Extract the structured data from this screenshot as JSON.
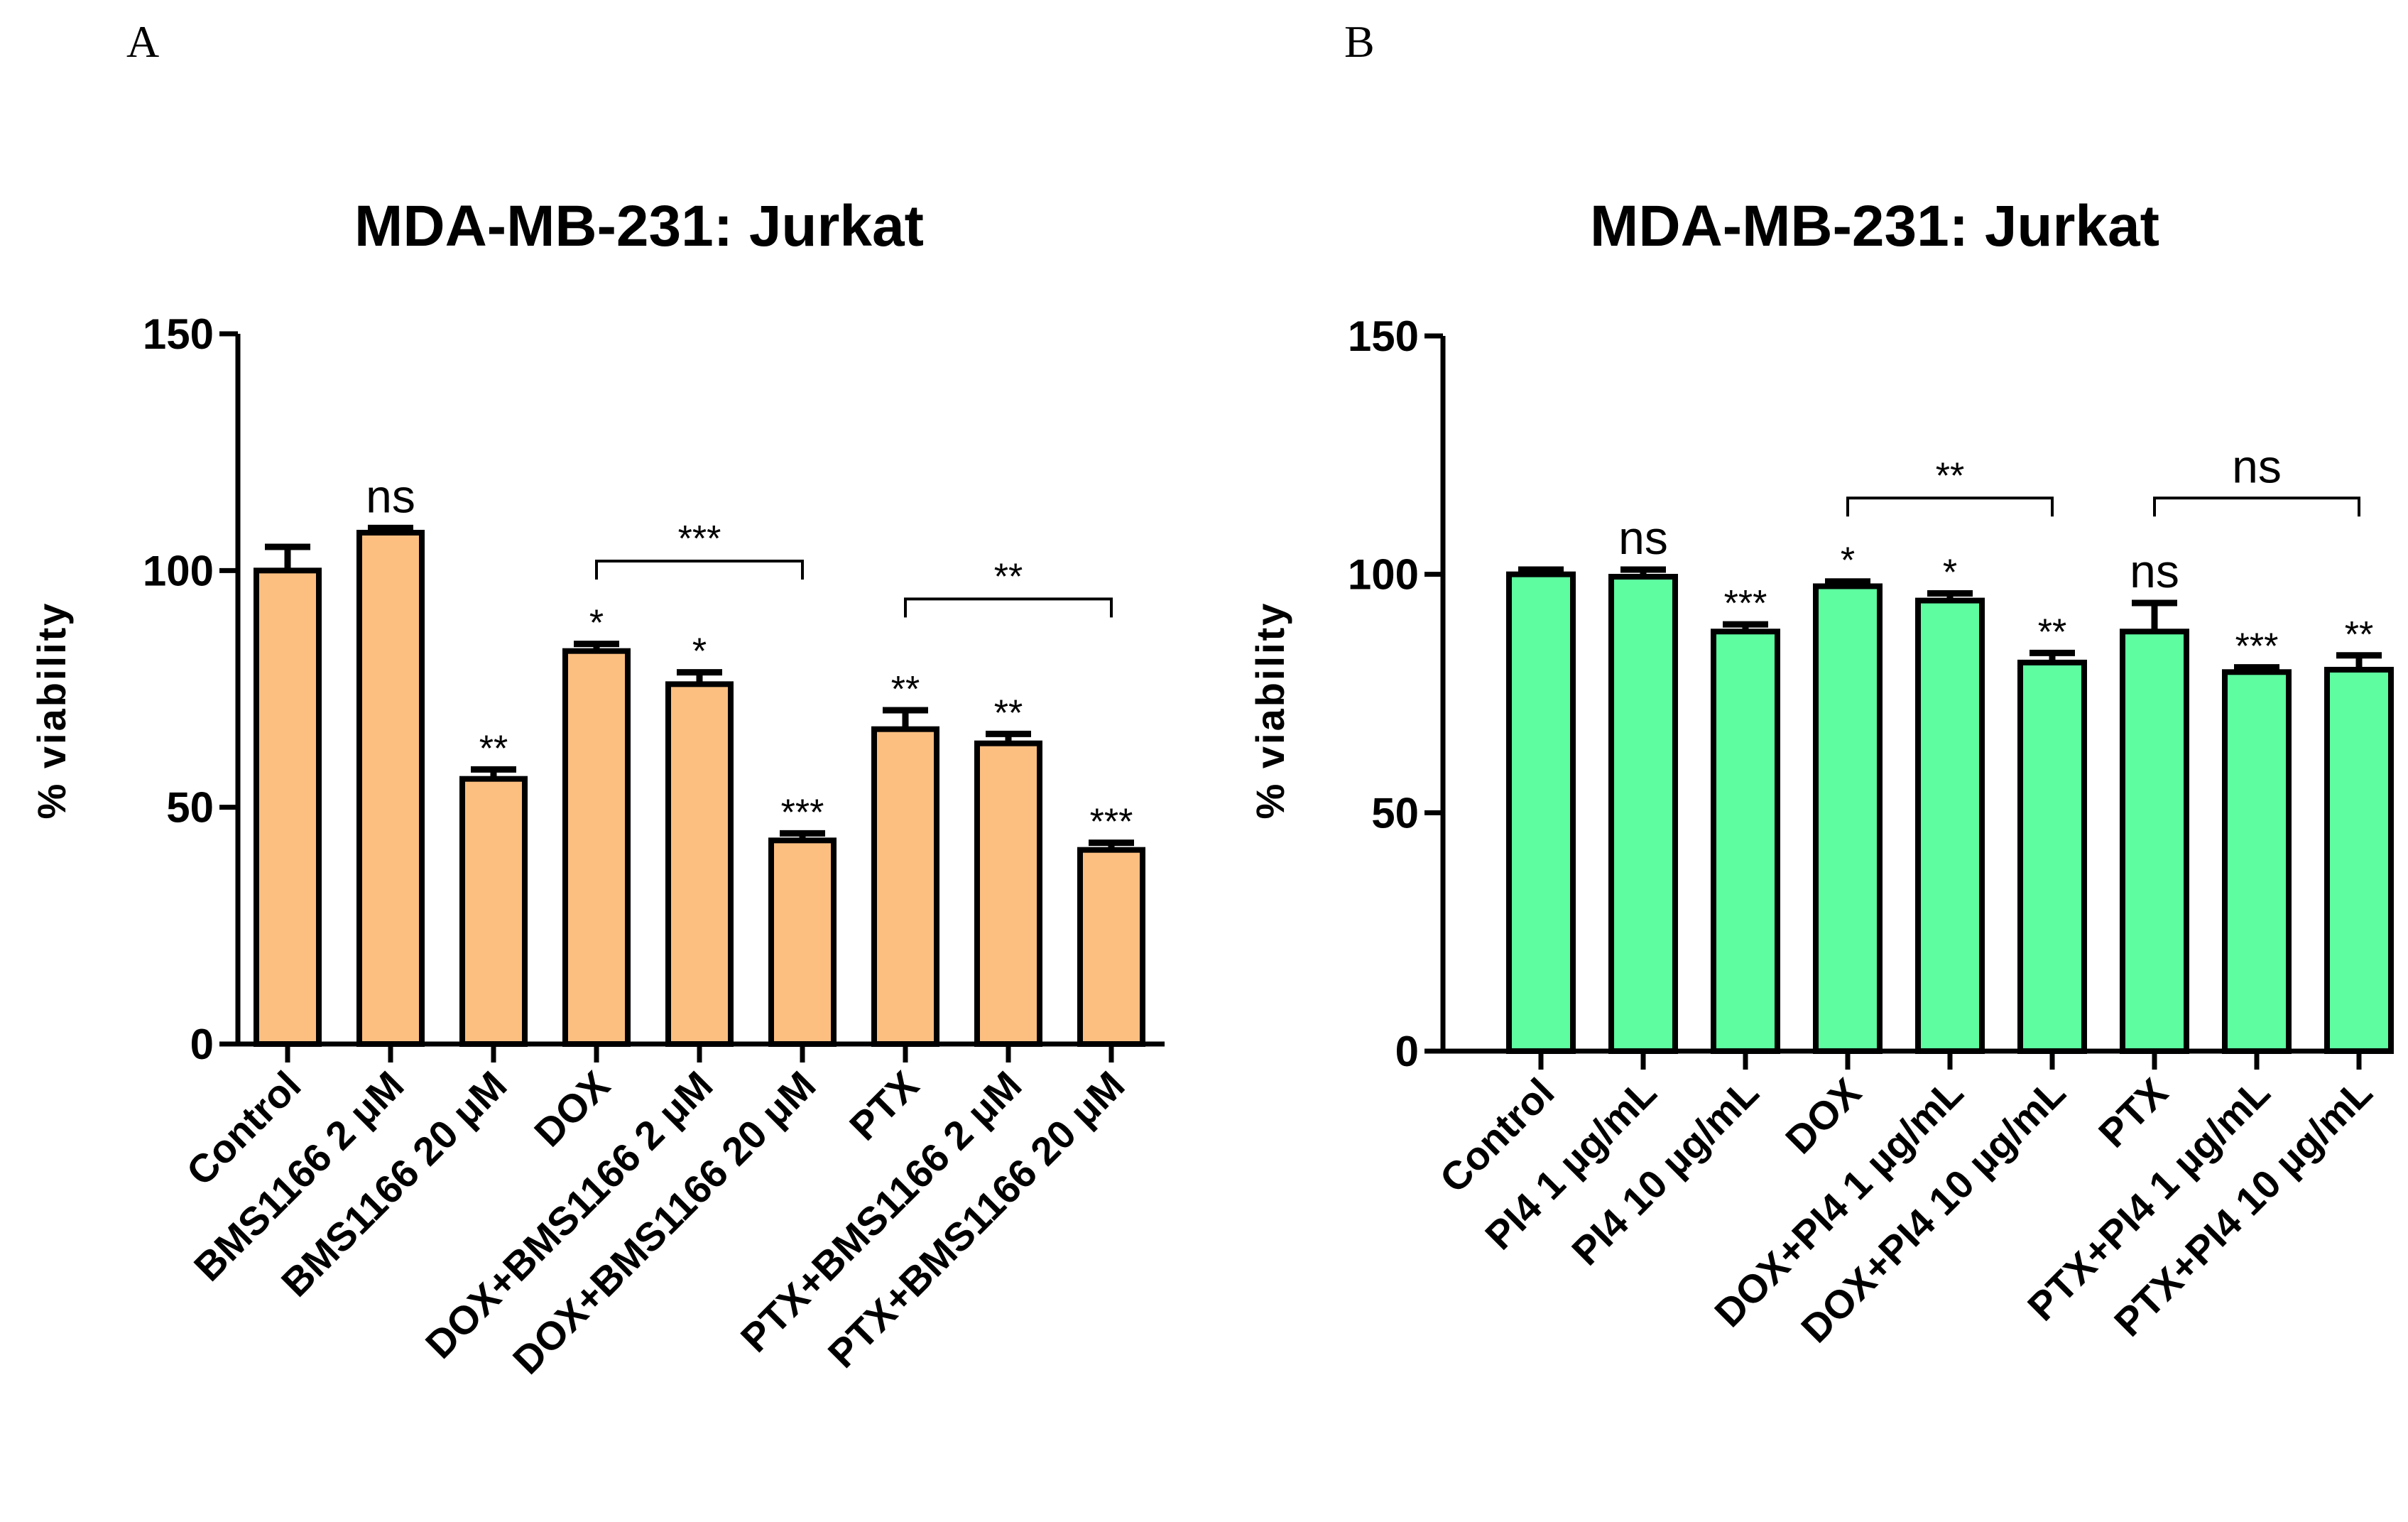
{
  "chart_data": [
    {
      "type": "bar",
      "panel": "A",
      "title": "MDA-MB-231: Jurkat",
      "xlabel": "",
      "ylabel": "% viability",
      "ylim": [
        0,
        150
      ],
      "yticks": [
        0,
        50,
        100,
        150
      ],
      "bar_color": "#fdbf80",
      "categories": [
        "Control",
        "BMS1166 2 μM",
        "BMS1166 20 μM",
        "DOX",
        "DOX+BMS1166 2 μM",
        "DOX+BMS1166 20 μM",
        "PTX",
        "PTX+BMS1166 2 μM",
        "PTX+BMS1166 20 μM"
      ],
      "values": [
        100,
        108,
        56,
        83,
        76,
        43,
        66.5,
        63.5,
        41
      ],
      "errors": [
        5,
        1,
        2,
        1.5,
        2.5,
        1.5,
        4,
        2,
        1.5
      ],
      "significance": [
        "",
        "ns",
        "**",
        "*",
        "*",
        "***",
        "**",
        "**",
        "***"
      ],
      "brackets": [
        {
          "from": 3,
          "to": 5,
          "label": "***",
          "y": 102
        },
        {
          "from": 6,
          "to": 8,
          "label": "**",
          "y": 94
        }
      ]
    },
    {
      "type": "bar",
      "panel": "B",
      "title": "MDA-MB-231: Jurkat",
      "xlabel": "",
      "ylabel": "% viability",
      "ylim": [
        0,
        150
      ],
      "yticks": [
        0,
        50,
        100,
        150
      ],
      "bar_color": "#5dfda0",
      "categories": [
        "Control",
        "PI4 1 µg/mL",
        "PI4 10 µg/mL",
        "DOX",
        "DOX+PI4 1 µg/mL",
        "DOX+PI4 10 µg/mL",
        "PTX",
        "PTX+PI4 1 µg/mL",
        "PTX+PI4 10 µg/mL"
      ],
      "values": [
        100,
        99.5,
        88,
        97.5,
        94.5,
        81.5,
        88,
        79.5,
        80
      ],
      "errors": [
        1,
        1.5,
        1.5,
        1,
        1.5,
        2,
        6,
        1,
        3
      ],
      "significance": [
        "",
        "ns",
        "***",
        "*",
        "*",
        "**",
        "ns",
        "***",
        "**"
      ],
      "brackets": [
        {
          "from": 3,
          "to": 5,
          "label": "**",
          "y": 116
        },
        {
          "from": 6,
          "to": 8,
          "label": "ns",
          "y": 116
        }
      ]
    }
  ]
}
